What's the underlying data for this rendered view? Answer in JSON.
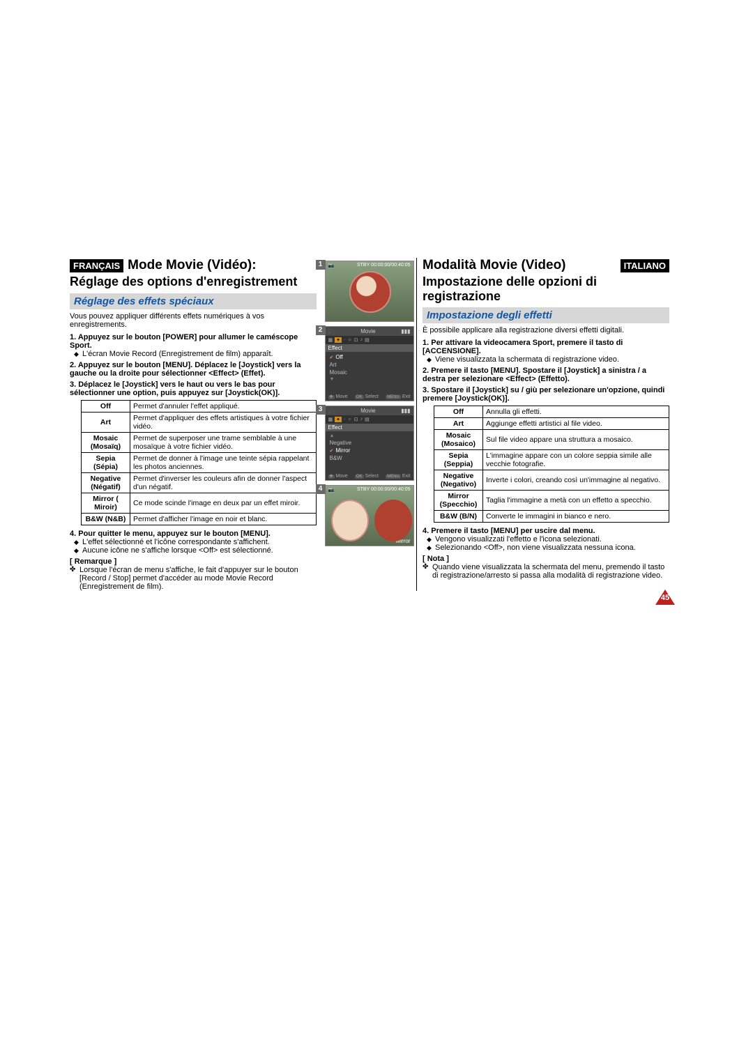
{
  "left": {
    "lang": "FRANÇAIS",
    "title": "Mode Movie (Vidéo):",
    "subtitle": "Réglage des options d'enregistrement",
    "section": "Réglage des effets spéciaux",
    "intro": "Vous pouvez appliquer différents effets numériques à vos enregistrements.",
    "steps": {
      "s1h": "1. Appuyez sur le bouton [POWER] pour allumer le caméscope Sport.",
      "s1b": "L'écran Movie Record (Enregistrement de film) apparaît.",
      "s2h": "2. Appuyez sur le bouton [MENU]. Déplacez le [Joystick] vers la gauche ou la droite pour sélectionner <Effect> (Effet).",
      "s3h": "3. Déplacez le [Joystick] vers le haut ou vers le bas pour sélectionner une option, puis appuyez sur [Joystick(OK)].",
      "s4h": "4. Pour quitter le menu, appuyez sur le bouton [MENU].",
      "s4b1": "L'effet sélectionné et l'icône correspondante s'affichent.",
      "s4b2": "Aucune icône ne s'affiche lorsque <Off> est sélectionné."
    },
    "table": {
      "off": {
        "k": "Off",
        "v": "Permet d'annuler l'effet appliqué."
      },
      "art": {
        "k": "Art",
        "v": "Permet d'appliquer des effets artistiques à votre fichier vidéo."
      },
      "mosaic": {
        "k": "Mosaic (Mosaïq)",
        "v": "Permet de superposer une trame semblable à une mosaïque à votre fichier vidéo."
      },
      "sepia": {
        "k": "Sepia (Sépia)",
        "v": "Permet de donner à l'image une teinte sépia rappelant les photos anciennes."
      },
      "negative": {
        "k": "Negative (Négatif)",
        "v": "Permet d'inverser les couleurs afin de donner l'aspect d'un négatif."
      },
      "mirror": {
        "k": "Mirror ( Miroir)",
        "v": "Ce mode scinde l'image en deux par un effet miroir."
      },
      "bw": {
        "k": "B&W (N&B)",
        "v": "Permet d'afficher l'image en noir et blanc."
      }
    },
    "remark_h": "[ Remarque ]",
    "remark": "Lorsque l'écran de menu s'affiche, le fait d'appuyer sur le bouton [Record / Stop] permet d'accéder au mode Movie Record (Enregistrement de film)."
  },
  "right": {
    "lang": "ITALIANO",
    "title": "Modalità Movie (Video)",
    "subtitle": "Impostazione delle opzioni di registrazione",
    "section": "Impostazione degli effetti",
    "intro": "È possibile applicare alla registrazione diversi effetti digitali.",
    "steps": {
      "s1h": "1. Per attivare la videocamera Sport, premere il tasto di [ACCENSIONE].",
      "s1b": "Viene visualizzata la schermata di registrazione video.",
      "s2h": "2. Premere il tasto [MENU]. Spostare il [Joystick] a sinistra / a destra per selezionare <Effect> (Effetto).",
      "s3h": "3. Spostare il [Joystick] su / giù per selezionare un'opzione, quindi premere [Joystick(OK)].",
      "s4h": "4. Premere il tasto [MENU] per uscire dal menu.",
      "s4b1": "Vengono visualizzati l'effetto e l'icona selezionati.",
      "s4b2": "Selezionando <Off>, non viene visualizzata nessuna icona."
    },
    "table": {
      "off": {
        "k": "Off",
        "v": "Annulla gli effetti."
      },
      "art": {
        "k": "Art",
        "v": "Aggiunge effetti artistici al file video."
      },
      "mosaic": {
        "k": "Mosaic (Mosaico)",
        "v": "Sul file video appare una struttura a mosaico."
      },
      "sepia": {
        "k": "Sepia (Seppia)",
        "v": "L'immagine appare con un colore seppia simile alle vecchie fotografie."
      },
      "negative": {
        "k": "Negative (Negativo)",
        "v": "Inverte i colori, creando così un'immagine al negativo."
      },
      "mirror": {
        "k": "Mirror (Specchio)",
        "v": "Taglia l'immagine a metà con un effetto a specchio."
      },
      "bw": {
        "k": "B&W (B/N)",
        "v": "Converte le immagini in bianco e nero."
      }
    },
    "remark_h": "[ Nota ]",
    "remark": "Quando viene visualizzata la schermata del menu, premendo il tasto di registrazione/arresto si passa alla modalità di registrazione video."
  },
  "shots": {
    "rec": {
      "stby": "STBY 00:00:00/00:40:05",
      "res": "720",
      "rec_label": "S",
      "mirror": "Mirror"
    },
    "menu": {
      "header": "Movie",
      "title": "Effect",
      "move": "Move",
      "select": "Select",
      "ok": "OK",
      "exit": "Exit",
      "menu_btn": "MENU",
      "items2": {
        "a": "Off",
        "b": "Art",
        "c": "Mosaic"
      },
      "items3": {
        "a": "Negative",
        "b": "Mirror",
        "c": "B&W"
      }
    }
  },
  "page_number": "45"
}
